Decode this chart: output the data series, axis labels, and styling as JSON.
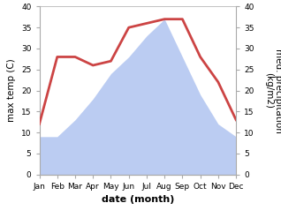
{
  "months": [
    "Jan",
    "Feb",
    "Mar",
    "Apr",
    "May",
    "Jun",
    "Jul",
    "Aug",
    "Sep",
    "Oct",
    "Nov",
    "Dec"
  ],
  "max_temp": [
    9,
    9,
    13,
    18,
    24,
    28,
    33,
    37,
    28,
    19,
    12,
    9
  ],
  "precipitation": [
    12,
    28,
    28,
    26,
    27,
    35,
    36,
    37,
    37,
    28,
    22,
    13
  ],
  "temp_color": "#b0c4f0",
  "precip_color": "#cc4444",
  "precip_linewidth": 2.0,
  "ylim_left": [
    0,
    40
  ],
  "ylim_right": [
    0,
    40
  ],
  "ylabel_left": "max temp (C)",
  "ylabel_right": "med. precipitation\n(kg/m2)",
  "xlabel": "date (month)",
  "background_color": "#ffffff",
  "label_fontsize": 7.5,
  "tick_fontsize": 6.5,
  "xlabel_fontsize": 8,
  "spine_color": "#aaaaaa"
}
